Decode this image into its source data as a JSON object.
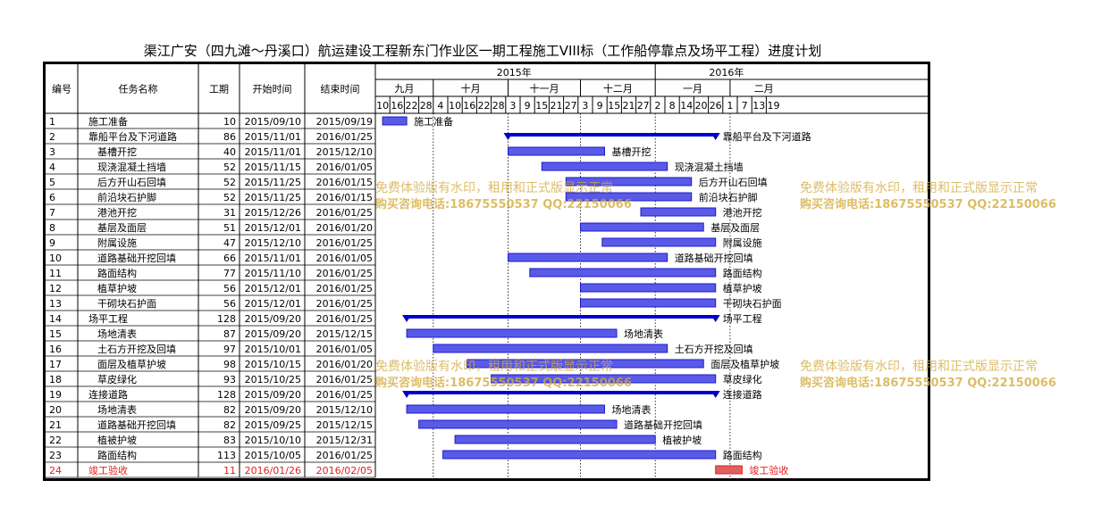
{
  "title": "渠江广安（四九滩～丹溪口）航运建设工程新东门作业区一期工程施工VIII标（工作船停靠点及场平工程）进度计划",
  "headers": {
    "id": "编号",
    "name": "任务名称",
    "duration": "工期",
    "start": "开始时间",
    "end": "结束时间"
  },
  "years": [
    {
      "label": "2015年",
      "start": "2015/09/07",
      "end": "2015/12/31"
    },
    {
      "label": "2016年",
      "start": "2016/01/01",
      "end": "2016/02/29"
    }
  ],
  "months": [
    {
      "label": "九月",
      "start": "2015/09/07",
      "end": "2015/10/01"
    },
    {
      "label": "十月",
      "start": "2015/10/01",
      "end": "2015/11/01"
    },
    {
      "label": "十一月",
      "start": "2015/11/01",
      "end": "2015/12/01"
    },
    {
      "label": "十二月",
      "start": "2015/12/01",
      "end": "2016/01/01"
    },
    {
      "label": "一月",
      "start": "2016/01/01",
      "end": "2016/02/01"
    },
    {
      "label": "二月",
      "start": "2016/02/01",
      "end": "2016/02/29"
    }
  ],
  "day_ticks": [
    {
      "label": "10",
      "date": "2015/09/10"
    },
    {
      "label": "16",
      "date": "2015/09/16"
    },
    {
      "label": "22",
      "date": "2015/09/22"
    },
    {
      "label": "28",
      "date": "2015/09/28"
    },
    {
      "label": "4",
      "date": "2015/10/04"
    },
    {
      "label": "10",
      "date": "2015/10/10"
    },
    {
      "label": "16",
      "date": "2015/10/16"
    },
    {
      "label": "22",
      "date": "2015/10/22"
    },
    {
      "label": "28",
      "date": "2015/10/28"
    },
    {
      "label": "3",
      "date": "2015/11/03"
    },
    {
      "label": "9",
      "date": "2015/11/09"
    },
    {
      "label": "15",
      "date": "2015/11/15"
    },
    {
      "label": "21",
      "date": "2015/11/21"
    },
    {
      "label": "27",
      "date": "2015/11/27"
    },
    {
      "label": "3",
      "date": "2015/12/03"
    },
    {
      "label": "9",
      "date": "2015/12/09"
    },
    {
      "label": "15",
      "date": "2015/12/15"
    },
    {
      "label": "21",
      "date": "2015/12/21"
    },
    {
      "label": "27",
      "date": "2015/12/27"
    },
    {
      "label": "2",
      "date": "2016/01/02"
    },
    {
      "label": "8",
      "date": "2016/01/08"
    },
    {
      "label": "14",
      "date": "2016/01/14"
    },
    {
      "label": "20",
      "date": "2016/01/20"
    },
    {
      "label": "26",
      "date": "2016/01/26"
    },
    {
      "label": "1",
      "date": "2016/02/01"
    },
    {
      "label": "7",
      "date": "2016/02/07"
    },
    {
      "label": "13",
      "date": "2016/02/13"
    },
    {
      "label": "19",
      "date": "2016/02/19"
    }
  ],
  "tasks": [
    {
      "id": "1",
      "name": "施工准备",
      "duration": "10",
      "start": "2015/09/10",
      "end": "2015/09/19",
      "type": "task",
      "indent": 0
    },
    {
      "id": "2",
      "name": "靠船平台及下河道路",
      "duration": "86",
      "start": "2015/11/01",
      "end": "2016/01/25",
      "type": "summary",
      "indent": 0
    },
    {
      "id": "3",
      "name": "基槽开挖",
      "duration": "40",
      "start": "2015/11/01",
      "end": "2015/12/10",
      "type": "task",
      "indent": 1
    },
    {
      "id": "4",
      "name": "现浇混凝土挡墙",
      "duration": "52",
      "start": "2015/11/15",
      "end": "2016/01/05",
      "type": "task",
      "indent": 1
    },
    {
      "id": "5",
      "name": "后方开山石回填",
      "duration": "52",
      "start": "2015/11/25",
      "end": "2016/01/15",
      "type": "task",
      "indent": 1
    },
    {
      "id": "6",
      "name": "前沿块石护脚",
      "duration": "52",
      "start": "2015/11/25",
      "end": "2016/01/15",
      "type": "task",
      "indent": 1
    },
    {
      "id": "7",
      "name": "港池开挖",
      "duration": "31",
      "start": "2015/12/26",
      "end": "2016/01/25",
      "type": "task",
      "indent": 1
    },
    {
      "id": "8",
      "name": "基层及面层",
      "duration": "51",
      "start": "2015/12/01",
      "end": "2016/01/20",
      "type": "task",
      "indent": 1
    },
    {
      "id": "9",
      "name": "附属设施",
      "duration": "47",
      "start": "2015/12/10",
      "end": "2016/01/25",
      "type": "task",
      "indent": 1
    },
    {
      "id": "10",
      "name": "道路基础开挖回填",
      "duration": "66",
      "start": "2015/11/01",
      "end": "2016/01/05",
      "type": "task",
      "indent": 1
    },
    {
      "id": "11",
      "name": "路面结构",
      "duration": "77",
      "start": "2015/11/10",
      "end": "2016/01/25",
      "type": "task",
      "indent": 1
    },
    {
      "id": "12",
      "name": "植草护坡",
      "duration": "56",
      "start": "2015/12/01",
      "end": "2016/01/25",
      "type": "task",
      "indent": 1
    },
    {
      "id": "13",
      "name": "干砌块石护面",
      "duration": "56",
      "start": "2015/12/01",
      "end": "2016/01/25",
      "type": "task",
      "indent": 1
    },
    {
      "id": "14",
      "name": "场平工程",
      "duration": "128",
      "start": "2015/09/20",
      "end": "2016/01/25",
      "type": "summary",
      "indent": 0
    },
    {
      "id": "15",
      "name": "场地清表",
      "duration": "87",
      "start": "2015/09/20",
      "end": "2015/12/15",
      "type": "task",
      "indent": 1
    },
    {
      "id": "16",
      "name": "土石方开挖及回填",
      "duration": "97",
      "start": "2015/10/01",
      "end": "2016/01/05",
      "type": "task",
      "indent": 1
    },
    {
      "id": "17",
      "name": "面层及植草护坡",
      "duration": "98",
      "start": "2015/10/15",
      "end": "2016/01/20",
      "type": "task",
      "indent": 1
    },
    {
      "id": "18",
      "name": "草皮绿化",
      "duration": "93",
      "start": "2015/10/25",
      "end": "2016/01/25",
      "type": "task",
      "indent": 1
    },
    {
      "id": "19",
      "name": "连接道路",
      "duration": "128",
      "start": "2015/09/20",
      "end": "2016/01/25",
      "type": "summary",
      "indent": 0
    },
    {
      "id": "20",
      "name": "场地清表",
      "duration": "82",
      "start": "2015/09/20",
      "end": "2015/12/10",
      "type": "task",
      "indent": 1
    },
    {
      "id": "21",
      "name": "道路基础开挖回填",
      "duration": "82",
      "start": "2015/09/25",
      "end": "2015/12/15",
      "type": "task",
      "indent": 1
    },
    {
      "id": "22",
      "name": "植被护坡",
      "duration": "83",
      "start": "2015/10/10",
      "end": "2015/12/31",
      "type": "task",
      "indent": 1
    },
    {
      "id": "23",
      "name": "路面结构",
      "duration": "113",
      "start": "2015/10/05",
      "end": "2016/01/25",
      "type": "task",
      "indent": 1
    },
    {
      "id": "24",
      "name": "竣工验收",
      "duration": "11",
      "start": "2016/01/26",
      "end": "2016/02/05",
      "type": "milestone",
      "indent": 0
    }
  ],
  "watermark": {
    "line1": "免费体验版有水印，租用和正式版显示正常",
    "line2": "购买咨询电话:18675550537 QQ:22150066"
  },
  "colors": {
    "bar": "#1a1acc",
    "bar_fill": "#5a5ae8",
    "summary": "#0000cc",
    "final": "#e02020",
    "final_fill": "#e06060",
    "text": "#000000"
  }
}
